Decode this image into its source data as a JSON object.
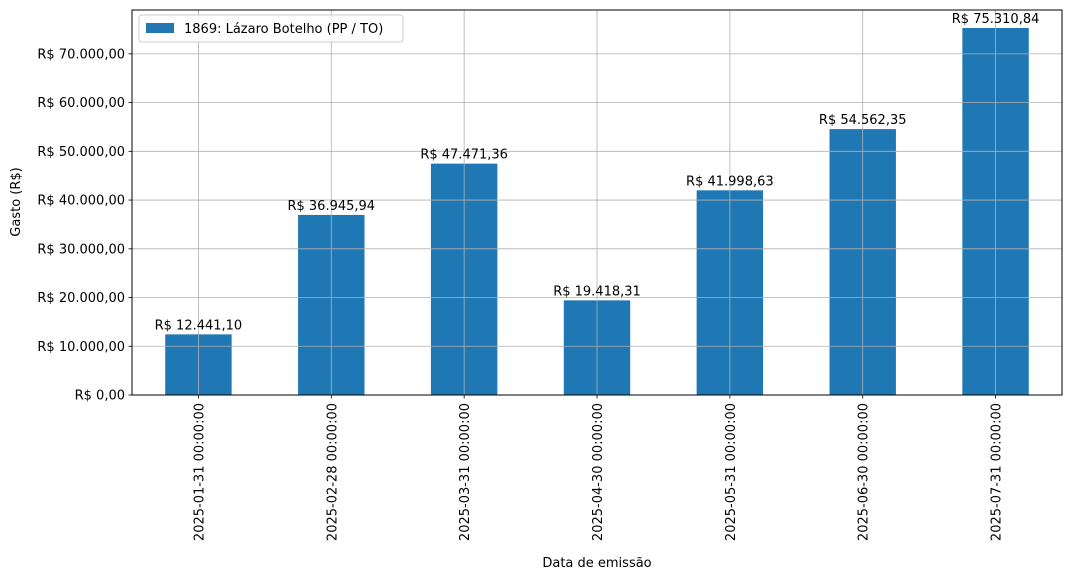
{
  "chart_data": {
    "type": "bar",
    "title": "",
    "xlabel": "Data de emissão",
    "ylabel": "Gasto (R$)",
    "categories": [
      "2025-01-31 00:00:00",
      "2025-02-28 00:00:00",
      "2025-03-31 00:00:00",
      "2025-04-30 00:00:00",
      "2025-05-31 00:00:00",
      "2025-06-30 00:00:00",
      "2025-07-31 00:00:00"
    ],
    "series": [
      {
        "name": "1869: Lázaro Botelho (PP / TO)",
        "color": "#1f77b4",
        "values": [
          12441.1,
          36945.94,
          47471.36,
          19418.31,
          41998.63,
          54562.35,
          75310.84
        ],
        "labels": [
          "R$ 12.441,10",
          "R$ 36.945,94",
          "R$ 47.471,36",
          "R$ 19.418,31",
          "R$ 41.998,63",
          "R$ 54.562,35",
          "R$ 75.310,84"
        ]
      }
    ],
    "ylim": [
      0,
      79000
    ],
    "yticks": [
      0,
      10000,
      20000,
      30000,
      40000,
      50000,
      60000,
      70000
    ],
    "ytick_labels": [
      "R$ 0,00",
      "R$ 10.000,00",
      "R$ 20.000,00",
      "R$ 30.000,00",
      "R$ 40.000,00",
      "R$ 50.000,00",
      "R$ 60.000,00",
      "R$ 70.000,00"
    ],
    "grid": true,
    "legend_position": "upper left",
    "xtick_rotation": 90
  }
}
